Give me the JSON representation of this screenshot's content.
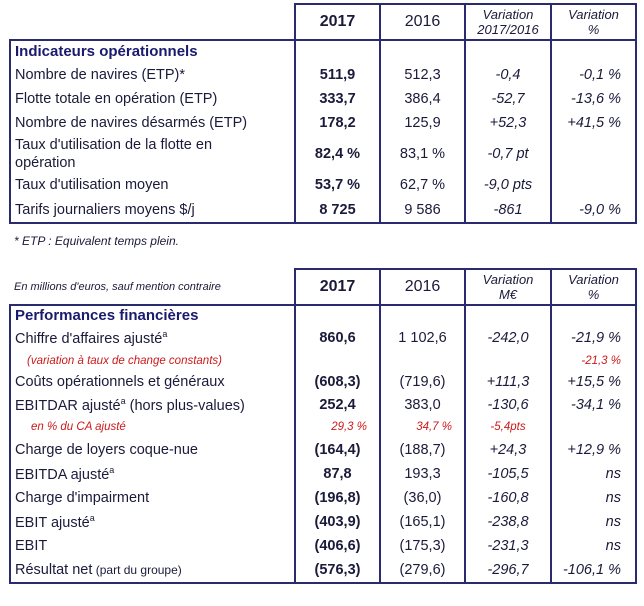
{
  "table1": {
    "headers": {
      "y2017": "2017",
      "y2016": "2016",
      "variation_line1": "Variation",
      "variation_line2": "2017/2016",
      "variation_pct_line1": "Variation",
      "variation_pct_line2": "%"
    },
    "section_title": "Indicateurs opérationnels",
    "rows": [
      {
        "label": "Nombre de navires (ETP)*",
        "v2017": "511,9",
        "v2016": "512,3",
        "var": "-0,4",
        "pct": "-0,1 %"
      },
      {
        "label": "Flotte totale en opération (ETP)",
        "v2017": "333,7",
        "v2016": "386,4",
        "var": "-52,7",
        "pct": "-13,6 %"
      },
      {
        "label": "Nombre de navires désarmés (ETP)",
        "v2017": "178,2",
        "v2016": "125,9",
        "var": "+52,3",
        "pct": "+41,5 %"
      },
      {
        "label": "Taux d'utilisation de la flotte en",
        "label2": "opération",
        "v2017": "82,4 %",
        "v2016": "83,1 %",
        "var": "-0,7 pt",
        "pct": ""
      },
      {
        "label": "Taux d'utilisation moyen",
        "v2017": "53,7 %",
        "v2016": "62,7 %",
        "var": "-9,0 pts",
        "pct": ""
      },
      {
        "label": "Tarifs journaliers moyens $/j",
        "v2017": "8 725",
        "v2016": "9 586",
        "var": "-861",
        "pct": "-9,0 %"
      }
    ],
    "footnote": "* ETP : Equivalent temps plein."
  },
  "table2": {
    "unit_note": "En millions d'euros, sauf mention contraire",
    "headers": {
      "y2017": "2017",
      "y2016": "2016",
      "variation_line1": "Variation",
      "variation_line2": "M€",
      "variation_pct_line1": "Variation",
      "variation_pct_line2": "%"
    },
    "section_title": "Performances financières",
    "rows": [
      {
        "label": "Chiffre d'affaires ajusté",
        "sup": "a",
        "v2017": "860,6",
        "v2016": "1 102,6",
        "var": "-242,0",
        "pct": "-21,9 %"
      },
      {
        "label": "(variation à taux de change constants)",
        "v2017": "",
        "v2016": "",
        "var": "",
        "pct": "-21,3 %",
        "red": true
      },
      {
        "label": "Coûts opérationnels et généraux",
        "v2017": "(608,3)",
        "v2016": "(719,6)",
        "var": "+111,3",
        "pct": "+15,5 %"
      },
      {
        "label": "EBITDAR ajusté",
        "sup": "a",
        "label_suffix": " (hors plus-values)",
        "v2017": "252,4",
        "v2016": "383,0",
        "var": "-130,6",
        "pct": "-34,1 %"
      },
      {
        "label": "en % du CA ajusté",
        "v2017": "29,3 %",
        "v2016": "34,7 %",
        "var": "-5,4pts",
        "pct": "",
        "red": true
      },
      {
        "label": "Charge de loyers coque-nue",
        "v2017": "(164,4)",
        "v2016": "(188,7)",
        "var": "+24,3",
        "pct": "+12,9 %"
      },
      {
        "label": "EBITDA ajusté",
        "sup": "a",
        "v2017": "87,8",
        "v2016": "193,3",
        "var": "-105,5",
        "pct": "ns"
      },
      {
        "label": "Charge d'impairment",
        "v2017": "(196,8)",
        "v2016": "(36,0)",
        "var": "-160,8",
        "pct": "ns"
      },
      {
        "label": "EBIT ajusté",
        "sup": "a",
        "v2017": "(403,9)",
        "v2016": "(165,1)",
        "var": "-238,8",
        "pct": "ns"
      },
      {
        "label": "EBIT",
        "v2017": "(406,6)",
        "v2016": "(175,3)",
        "var": "-231,3",
        "pct": "ns"
      },
      {
        "label": "Résultat net",
        "label_suffix": " (part du groupe)",
        "v2017": "(576,3)",
        "v2016": "(279,6)",
        "var": "-296,7",
        "pct": "-106,1 %"
      }
    ]
  },
  "colors": {
    "border": "#2a2a6e",
    "text": "#1a1a3a",
    "red": "#cc1a1a"
  }
}
